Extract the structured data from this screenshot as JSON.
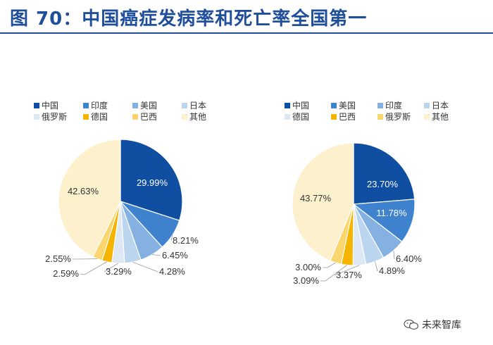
{
  "page_title": "图 70：中国癌症发病率和死亡率全国第一",
  "watermark": {
    "text": "未来智库",
    "icon": "wechat-icon"
  },
  "chart_data": [
    {
      "type": "pie",
      "title": "",
      "legend_position": "top",
      "legend": [
        "中国",
        "印度",
        "美国",
        "日本",
        "俄罗斯",
        "德国",
        "巴西",
        "其他"
      ],
      "slices": [
        {
          "name": "中国",
          "value": 29.99,
          "label": "29.99%",
          "color": "#0f4ea1"
        },
        {
          "name": "印度",
          "value": 8.21,
          "label": "8.21%",
          "color": "#3f83cf"
        },
        {
          "name": "美国",
          "value": 6.45,
          "label": "6.45%",
          "color": "#84b1e2"
        },
        {
          "name": "日本",
          "value": 4.28,
          "label": "4.28%",
          "color": "#bcd5ef"
        },
        {
          "name": "俄罗斯",
          "value": 3.29,
          "label": "3.29%",
          "color": "#dde8f4"
        },
        {
          "name": "德国",
          "value": 2.59,
          "label": "2.59%",
          "color": "#f5b400"
        },
        {
          "name": "巴西",
          "value": 2.55,
          "label": "2.55%",
          "color": "#fbd66e"
        },
        {
          "name": "其他",
          "value": 42.63,
          "label": "42.63%",
          "color": "#fdf0cc"
        }
      ]
    },
    {
      "type": "pie",
      "title": "",
      "legend_position": "top",
      "legend": [
        "中国",
        "美国",
        "印度",
        "日本",
        "德国",
        "巴西",
        "俄罗斯",
        "其他"
      ],
      "slices": [
        {
          "name": "中国",
          "value": 23.7,
          "label": "23.70%",
          "color": "#0f4ea1"
        },
        {
          "name": "美国",
          "value": 11.78,
          "label": "11.78%",
          "color": "#3f83cf"
        },
        {
          "name": "印度",
          "value": 6.4,
          "label": "6.40%",
          "color": "#84b1e2"
        },
        {
          "name": "日本",
          "value": 4.89,
          "label": "4.89%",
          "color": "#bcd5ef"
        },
        {
          "name": "德国",
          "value": 3.37,
          "label": "3.37%",
          "color": "#dde8f4"
        },
        {
          "name": "巴西",
          "value": 3.09,
          "label": "3.09%",
          "color": "#f5b400"
        },
        {
          "name": "俄罗斯",
          "value": 3.0,
          "label": "3.00%",
          "color": "#fbd66e"
        },
        {
          "name": "其他",
          "value": 43.77,
          "label": "43.77%",
          "color": "#fdf0cc"
        }
      ]
    }
  ]
}
